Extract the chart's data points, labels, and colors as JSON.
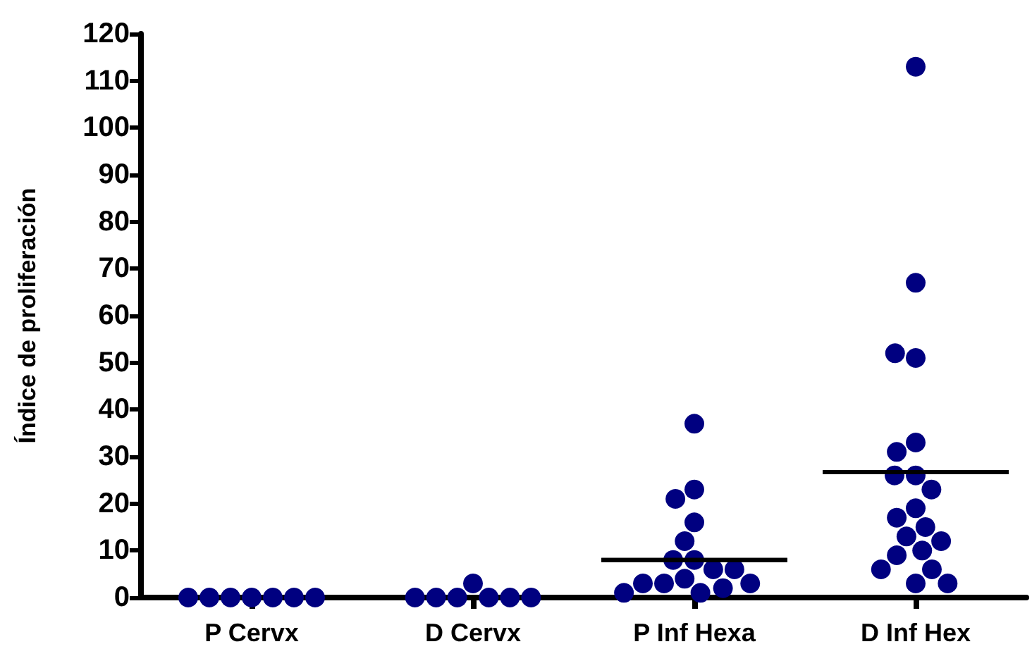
{
  "chart_data": {
    "type": "scatter",
    "ylabel": "Índice de proliferación",
    "categories": [
      "P Cervx",
      "D Cervx",
      "P Inf Hexa",
      "D Inf Hex"
    ],
    "series": [
      {
        "color": "#000080",
        "marker": "circle",
        "x": [
          "P Cervx",
          "P Cervx",
          "P Cervx",
          "P Cervx",
          "P Cervx",
          "P Cervx",
          "P Cervx",
          "D Cervx",
          "D Cervx",
          "D Cervx",
          "D Cervx",
          "D Cervx",
          "D Cervx",
          "D Cervx",
          "P Inf Hexa",
          "P Inf Hexa",
          "P Inf Hexa",
          "P Inf Hexa",
          "P Inf Hexa",
          "P Inf Hexa",
          "P Inf Hexa",
          "P Inf Hexa",
          "P Inf Hexa",
          "P Inf Hexa",
          "P Inf Hexa",
          "P Inf Hexa",
          "P Inf Hexa",
          "P Inf Hexa",
          "P Inf Hexa",
          "P Inf Hexa",
          "D Inf Hex",
          "D Inf Hex",
          "D Inf Hex",
          "D Inf Hex",
          "D Inf Hex",
          "D Inf Hex",
          "D Inf Hex",
          "D Inf Hex",
          "D Inf Hex",
          "D Inf Hex",
          "D Inf Hex",
          "D Inf Hex",
          "D Inf Hex",
          "D Inf Hex",
          "D Inf Hex",
          "D Inf Hex",
          "D Inf Hex",
          "D Inf Hex",
          "D Inf Hex",
          "D Inf Hex"
        ],
        "values": [
          0,
          0,
          0,
          0,
          0,
          0,
          0,
          3,
          0,
          0,
          0,
          0,
          0,
          0,
          37,
          23,
          21,
          16,
          12,
          8,
          8,
          6,
          6,
          4,
          3,
          3,
          3,
          2,
          1,
          1,
          113,
          67,
          51,
          52,
          33,
          31,
          26,
          26,
          23,
          19,
          17,
          15,
          13,
          12,
          10,
          9,
          6,
          6,
          3,
          3
        ]
      },
      {
        "type": "box",
        "color": "#000000",
        "boxes": [
          null,
          null,
          {
            "low": 8,
            "q1": 8,
            "median": 8,
            "q3": 8,
            "high": 8
          },
          {
            "low": 26.7,
            "q1": 26.7,
            "median": 26.7,
            "q3": 26.7,
            "high": 26.7
          }
        ]
      }
    ],
    "ylim": [
      0,
      120
    ],
    "yticks": [
      0,
      10,
      20,
      30,
      40,
      50,
      60,
      70,
      80,
      90,
      100,
      110,
      120
    ],
    "grid": false
  }
}
